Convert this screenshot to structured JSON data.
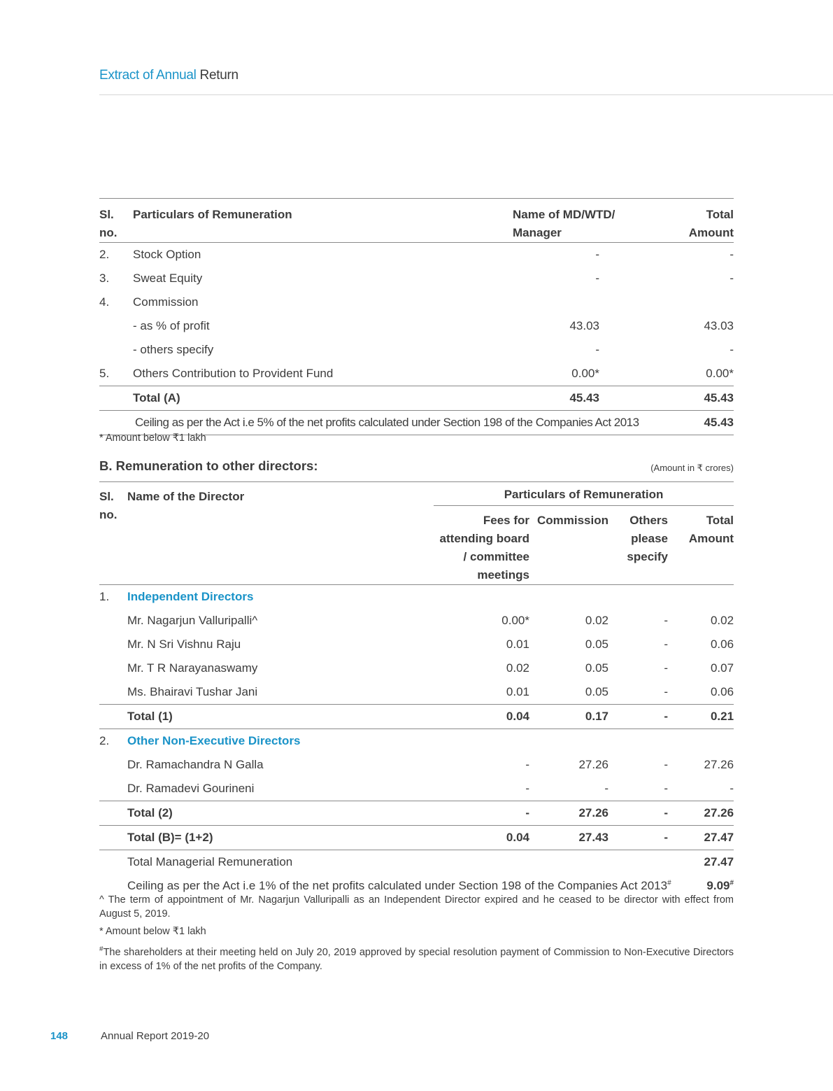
{
  "header": {
    "title_blue": "Extract of Annual",
    "title_dark": "Return"
  },
  "table_a": {
    "headers": {
      "sl": "Sl.",
      "sl2": "no.",
      "particulars": "Particulars of Remuneration",
      "name": "Name of MD/WTD/",
      "name2": "Manager",
      "total": "Total",
      "total2": "Amount"
    },
    "rows": [
      {
        "sl": "2.",
        "particulars": "Stock Option",
        "name": "-",
        "total": "-"
      },
      {
        "sl": "3.",
        "particulars": "Sweat Equity",
        "name": "-",
        "total": "-"
      },
      {
        "sl": "4.",
        "particulars": "Commission",
        "name": "",
        "total": ""
      },
      {
        "sl": "",
        "particulars": "- as % of profit",
        "name": "43.03",
        "total": "43.03"
      },
      {
        "sl": "",
        "particulars": "- others specify",
        "name": "-",
        "total": "-"
      },
      {
        "sl": "5.",
        "particulars": "Others Contribution to Provident Fund",
        "name": "0.00*",
        "total": "0.00*"
      }
    ],
    "total_row": {
      "label": "Total (A)",
      "name": "45.43",
      "total": "45.43"
    },
    "ceiling_row": {
      "label": "Ceiling as per the Act i.e 5% of the net profits calculated under Section 198 of the Companies Act 2013",
      "total": "45.43"
    },
    "footnote": "* Amount below ₹1 lakh"
  },
  "section_b": {
    "title": "B.  Remuneration to other directors:",
    "unit": "(Amount in ₹ crores)",
    "headers": {
      "sl": "Sl.",
      "sl2": "no.",
      "name": "Name of the Director",
      "group": "Particulars of Remuneration",
      "fees": [
        "Fees for",
        "attending board",
        "/ committee",
        "meetings"
      ],
      "commission": "Commission",
      "others": [
        "Others",
        "please",
        "specify"
      ],
      "total": [
        "Total",
        "Amount"
      ]
    },
    "groups": [
      {
        "sl": "1.",
        "title": "Independent Directors",
        "rows": [
          {
            "name": "Mr. Nagarjun Valluripalli^",
            "fees": "0.00*",
            "commission": "0.02",
            "others": "-",
            "total": "0.02"
          },
          {
            "name": "Mr. N Sri Vishnu Raju",
            "fees": "0.01",
            "commission": "0.05",
            "others": "-",
            "total": "0.06"
          },
          {
            "name": "Mr. T R Narayanaswamy",
            "fees": "0.02",
            "commission": "0.05",
            "others": "-",
            "total": "0.07"
          },
          {
            "name": "Ms. Bhairavi Tushar Jani",
            "fees": "0.01",
            "commission": "0.05",
            "others": "-",
            "total": "0.06"
          }
        ],
        "total": {
          "name": "Total (1)",
          "fees": "0.04",
          "commission": "0.17",
          "others": "-",
          "total": "0.21"
        }
      },
      {
        "sl": "2.",
        "title": "Other Non-Executive Directors",
        "rows": [
          {
            "name": "Dr. Ramachandra N Galla",
            "fees": "-",
            "commission": "27.26",
            "others": "-",
            "total": "27.26"
          },
          {
            "name": "Dr. Ramadevi Gourineni",
            "fees": "-",
            "commission": "-",
            "others": "-",
            "total": "-"
          }
        ],
        "total": {
          "name": "Total (2)",
          "fees": "-",
          "commission": "27.26",
          "others": "-",
          "total": "27.26"
        }
      }
    ],
    "total_b": {
      "name": "Total (B)= (1+2)",
      "fees": "0.04",
      "commission": "27.43",
      "others": "-",
      "total": "27.47"
    },
    "total_managerial": {
      "name": "Total Managerial Remuneration",
      "total": "27.47"
    },
    "ceiling": {
      "name": "Ceiling as per the Act i.e 1% of the net profits calculated under Section 198 of the Companies Act 2013",
      "mark": "#",
      "total": "9.09"
    },
    "notes": [
      "^ The term of appointment of Mr. Nagarjun Valluripalli as an Independent Director expired and he ceased to be director with effect from August 5, 2019.",
      "* Amount below ₹1 lakh",
      "The shareholders at their meeting held on July 20, 2019 approved by special resolution payment of Commission to Non-Executive Directors in excess of 1% of the net profits of the Company."
    ],
    "note_mark": "#"
  },
  "footer": {
    "page": "148",
    "report": "Annual Report 2019-20"
  },
  "colors": {
    "accent": "#1a93c8",
    "text": "#3c3c3c",
    "rule": "#8a8a8a"
  }
}
